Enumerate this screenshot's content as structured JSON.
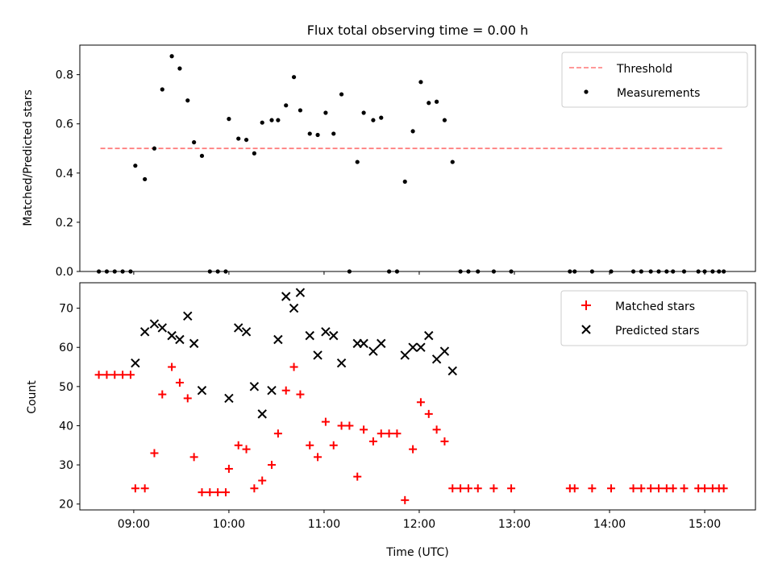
{
  "chart_data": [
    {
      "type": "scatter",
      "title": "Flux total observing time = 0.00 h",
      "xlabel": "",
      "ylabel": "Matched/Predicted stars",
      "ylim": [
        0.0,
        0.92
      ],
      "yticks": [
        0.0,
        0.2,
        0.4,
        0.6,
        0.8
      ],
      "ytick_labels": [
        "0.0",
        "0.2",
        "0.4",
        "0.6",
        "0.8"
      ],
      "xlim": [
        "08:26",
        "15:32"
      ],
      "grid": false,
      "legend": {
        "placement": "top-right",
        "entries": [
          "Threshold",
          "Measurements"
        ]
      },
      "threshold": {
        "name": "Threshold",
        "value": 0.5,
        "x_start": "08:39",
        "x_end": "15:11",
        "color": "#ff7777",
        "style": "dashed"
      },
      "series": [
        {
          "name": "Measurements",
          "color": "#000000",
          "marker": "dot",
          "points": [
            [
              "08:38",
              0.0
            ],
            [
              "08:43",
              0.0
            ],
            [
              "08:48",
              0.0
            ],
            [
              "08:53",
              0.0
            ],
            [
              "08:58",
              0.0
            ],
            [
              "09:01",
              0.43
            ],
            [
              "09:07",
              0.375
            ],
            [
              "09:13",
              0.5
            ],
            [
              "09:18",
              0.74
            ],
            [
              "09:24",
              0.875
            ],
            [
              "09:29",
              0.825
            ],
            [
              "09:34",
              0.695
            ],
            [
              "09:38",
              0.525
            ],
            [
              "09:43",
              0.47
            ],
            [
              "09:48",
              0.0
            ],
            [
              "09:53",
              0.0
            ],
            [
              "09:58",
              0.0
            ],
            [
              "10:00",
              0.62
            ],
            [
              "10:06",
              0.54
            ],
            [
              "10:11",
              0.535
            ],
            [
              "10:16",
              0.48
            ],
            [
              "10:21",
              0.605
            ],
            [
              "10:27",
              0.615
            ],
            [
              "10:31",
              0.615
            ],
            [
              "10:36",
              0.675
            ],
            [
              "10:41",
              0.79
            ],
            [
              "10:45",
              0.655
            ],
            [
              "10:51",
              0.56
            ],
            [
              "10:56",
              0.555
            ],
            [
              "11:01",
              0.645
            ],
            [
              "11:06",
              0.56
            ],
            [
              "11:11",
              0.72
            ],
            [
              "11:16",
              0.0
            ],
            [
              "11:21",
              0.445
            ],
            [
              "11:25",
              0.645
            ],
            [
              "11:31",
              0.615
            ],
            [
              "11:36",
              0.625
            ],
            [
              "11:41",
              0.0
            ],
            [
              "11:46",
              0.0
            ],
            [
              "11:51",
              0.365
            ],
            [
              "11:56",
              0.57
            ],
            [
              "12:01",
              0.77
            ],
            [
              "12:06",
              0.685
            ],
            [
              "12:11",
              0.69
            ],
            [
              "12:16",
              0.615
            ],
            [
              "12:21",
              0.445
            ],
            [
              "12:26",
              0.0
            ],
            [
              "12:31",
              0.0
            ],
            [
              "12:37",
              0.0
            ],
            [
              "12:47",
              0.0
            ],
            [
              "12:58",
              0.0
            ],
            [
              "13:35",
              0.0
            ],
            [
              "13:38",
              0.0
            ],
            [
              "13:49",
              0.0
            ],
            [
              "14:01",
              0.0
            ],
            [
              "14:15",
              0.0
            ],
            [
              "14:20",
              0.0
            ],
            [
              "14:26",
              0.0
            ],
            [
              "14:31",
              0.0
            ],
            [
              "14:36",
              0.0
            ],
            [
              "14:40",
              0.0
            ],
            [
              "14:47",
              0.0
            ],
            [
              "14:56",
              0.0
            ],
            [
              "15:00",
              0.0
            ],
            [
              "15:05",
              0.0
            ],
            [
              "15:09",
              0.0
            ],
            [
              "15:12",
              0.0
            ]
          ]
        }
      ]
    },
    {
      "type": "scatter",
      "title": "",
      "xlabel": "Time (UTC)",
      "ylabel": "Count",
      "ylim": [
        18.5,
        76.5
      ],
      "yticks": [
        20,
        30,
        40,
        50,
        60,
        70
      ],
      "ytick_labels": [
        "20",
        "30",
        "40",
        "50",
        "60",
        "70"
      ],
      "xlim": [
        "08:26",
        "15:32"
      ],
      "xticks": [
        "09:00",
        "10:00",
        "11:00",
        "12:00",
        "13:00",
        "14:00",
        "15:00"
      ],
      "xtick_labels": [
        "09:00",
        "10:00",
        "11:00",
        "12:00",
        "13:00",
        "14:00",
        "15:00"
      ],
      "grid": false,
      "legend": {
        "placement": "top-right",
        "entries": [
          "Matched stars",
          "Predicted stars"
        ]
      },
      "series": [
        {
          "name": "Matched stars",
          "color": "#ff0000",
          "marker": "plus",
          "points": [
            [
              "08:38",
              53
            ],
            [
              "08:43",
              53
            ],
            [
              "08:48",
              53
            ],
            [
              "08:53",
              53
            ],
            [
              "08:58",
              53
            ],
            [
              "09:01",
              24
            ],
            [
              "09:07",
              24
            ],
            [
              "09:13",
              33
            ],
            [
              "09:18",
              48
            ],
            [
              "09:24",
              55
            ],
            [
              "09:29",
              51
            ],
            [
              "09:34",
              47
            ],
            [
              "09:38",
              32
            ],
            [
              "09:43",
              23
            ],
            [
              "09:48",
              23
            ],
            [
              "09:53",
              23
            ],
            [
              "09:58",
              23
            ],
            [
              "10:00",
              29
            ],
            [
              "10:06",
              35
            ],
            [
              "10:11",
              34
            ],
            [
              "10:16",
              24
            ],
            [
              "10:21",
              26
            ],
            [
              "10:27",
              30
            ],
            [
              "10:31",
              38
            ],
            [
              "10:36",
              49
            ],
            [
              "10:41",
              55
            ],
            [
              "10:45",
              48
            ],
            [
              "10:51",
              35
            ],
            [
              "10:56",
              32
            ],
            [
              "11:01",
              41
            ],
            [
              "11:06",
              35
            ],
            [
              "11:11",
              40
            ],
            [
              "11:16",
              40
            ],
            [
              "11:21",
              27
            ],
            [
              "11:25",
              39
            ],
            [
              "11:31",
              36
            ],
            [
              "11:36",
              38
            ],
            [
              "11:41",
              38
            ],
            [
              "11:46",
              38
            ],
            [
              "11:51",
              21
            ],
            [
              "11:56",
              34
            ],
            [
              "12:01",
              46
            ],
            [
              "12:06",
              43
            ],
            [
              "12:11",
              39
            ],
            [
              "12:16",
              36
            ],
            [
              "12:21",
              24
            ],
            [
              "12:26",
              24
            ],
            [
              "12:31",
              24
            ],
            [
              "12:37",
              24
            ],
            [
              "12:47",
              24
            ],
            [
              "12:58",
              24
            ],
            [
              "13:35",
              24
            ],
            [
              "13:38",
              24
            ],
            [
              "13:49",
              24
            ],
            [
              "14:01",
              24
            ],
            [
              "14:15",
              24
            ],
            [
              "14:20",
              24
            ],
            [
              "14:26",
              24
            ],
            [
              "14:31",
              24
            ],
            [
              "14:36",
              24
            ],
            [
              "14:40",
              24
            ],
            [
              "14:47",
              24
            ],
            [
              "14:56",
              24
            ],
            [
              "15:00",
              24
            ],
            [
              "15:05",
              24
            ],
            [
              "15:09",
              24
            ],
            [
              "15:12",
              24
            ]
          ]
        },
        {
          "name": "Predicted stars",
          "color": "#000000",
          "marker": "x",
          "points": [
            [
              "09:01",
              56
            ],
            [
              "09:07",
              64
            ],
            [
              "09:13",
              66
            ],
            [
              "09:18",
              65
            ],
            [
              "09:24",
              63
            ],
            [
              "09:29",
              62
            ],
            [
              "09:34",
              68
            ],
            [
              "09:38",
              61
            ],
            [
              "09:43",
              49
            ],
            [
              "10:00",
              47
            ],
            [
              "10:06",
              65
            ],
            [
              "10:11",
              64
            ],
            [
              "10:16",
              50
            ],
            [
              "10:21",
              43
            ],
            [
              "10:27",
              49
            ],
            [
              "10:31",
              62
            ],
            [
              "10:36",
              73
            ],
            [
              "10:41",
              70
            ],
            [
              "10:45",
              74
            ],
            [
              "10:51",
              63
            ],
            [
              "10:56",
              58
            ],
            [
              "11:01",
              64
            ],
            [
              "11:06",
              63
            ],
            [
              "11:11",
              56
            ],
            [
              "11:21",
              61
            ],
            [
              "11:25",
              61
            ],
            [
              "11:31",
              59
            ],
            [
              "11:36",
              61
            ],
            [
              "11:51",
              58
            ],
            [
              "11:56",
              60
            ],
            [
              "12:01",
              60
            ],
            [
              "12:06",
              63
            ],
            [
              "12:11",
              57
            ],
            [
              "12:16",
              59
            ],
            [
              "12:21",
              54
            ]
          ]
        }
      ]
    }
  ]
}
